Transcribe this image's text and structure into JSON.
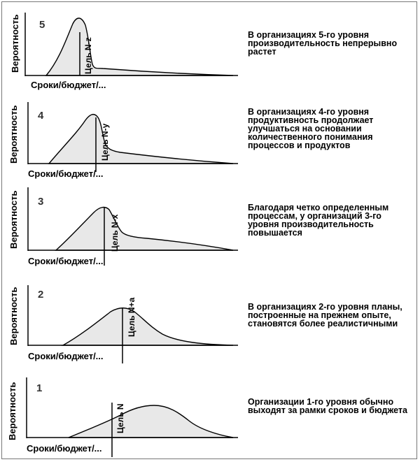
{
  "colors": {
    "fill": "#e8e8e8",
    "stroke": "#000000"
  },
  "panels": [
    {
      "level": "5",
      "ylabel": "Вероятность",
      "xlabel": "Сроки/бюджет/...",
      "goal": "Цель N-z",
      "description": "В организациях 5-го уровня производительность непрерывно растет"
    },
    {
      "level": "4",
      "ylabel": "Вероятность",
      "xlabel": "Сроки/бюджет/...",
      "goal": "Цель N-y",
      "description": "В организациях 4-го уровня продуктивность продолжает улучшаться на основании количественного понимания процессов и продуктов"
    },
    {
      "level": "3",
      "ylabel": "Вероятность",
      "xlabel": "Сроки/бюджет/...",
      "goal": "Цель N-x",
      "description": "Благодаря четко определенным процессам, у организаций 3-го уровня производительность повышается"
    },
    {
      "level": "2",
      "ylabel": "Вероятность",
      "xlabel": "Сроки/бюджет/...",
      "goal": "Цель N+a",
      "description": "В организациях 2-го уровня планы, построенные на прежнем опыте, становятся более реалистичными"
    },
    {
      "level": "1",
      "ylabel": "Вероятность",
      "xlabel": "Сроки/бюджет/...",
      "goal": "Цель N",
      "description": "Организации 1-го уровня обычно выходят за рамки сроков и бюджета"
    }
  ]
}
